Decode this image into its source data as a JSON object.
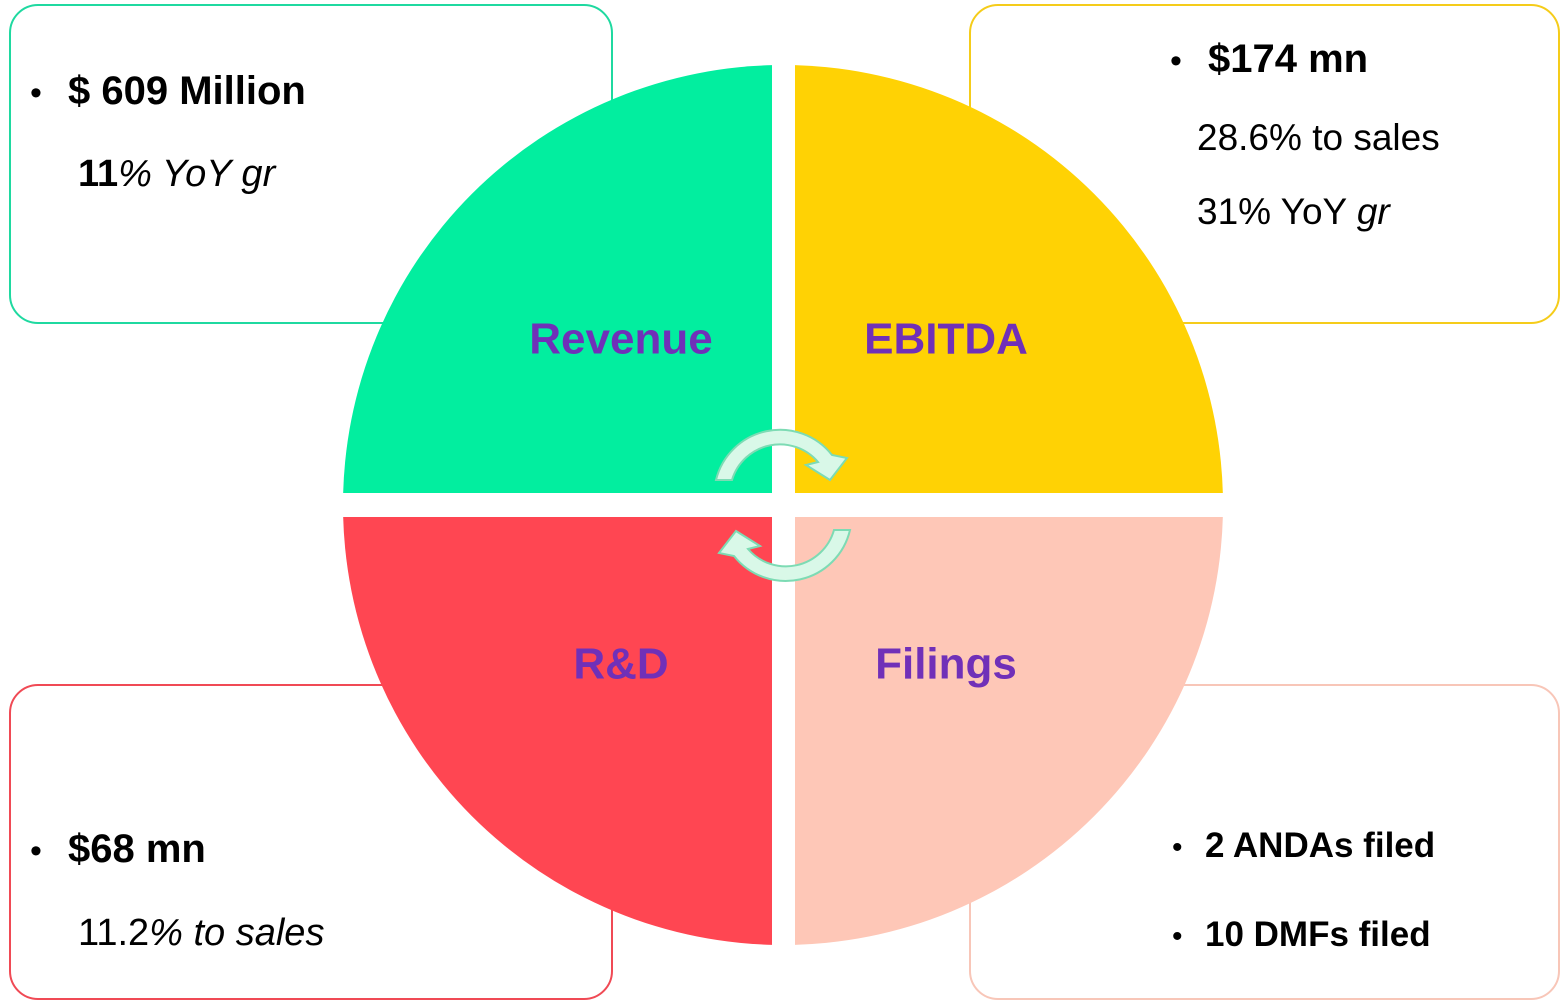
{
  "quadrants": [
    {
      "label": "Revenue",
      "lines": [
        {
          "bullet": "•",
          "parts": [
            "$ 609 Million"
          ]
        },
        {
          "parts": [
            "11",
            "% YoY gr"
          ]
        }
      ]
    },
    {
      "label": "EBITDA",
      "lines": [
        {
          "bullet": "•",
          "parts": [
            "$174 mn"
          ]
        },
        {
          "parts": [
            "28.6% to sales"
          ]
        },
        {
          "parts": [
            "31% YoY ",
            "gr"
          ]
        }
      ]
    },
    {
      "label": "R&D",
      "lines": [
        {
          "bullet": "•",
          "parts": [
            "$68 mn"
          ]
        },
        {
          "parts": [
            "11.2",
            "% to sales"
          ]
        }
      ]
    },
    {
      "label": "Filings",
      "lines": [
        {
          "bullet": "•",
          "parts": [
            "2 ANDAs filed"
          ]
        },
        {
          "bullet": "•",
          "parts": [
            "10 DMFs filed"
          ]
        }
      ]
    }
  ]
}
